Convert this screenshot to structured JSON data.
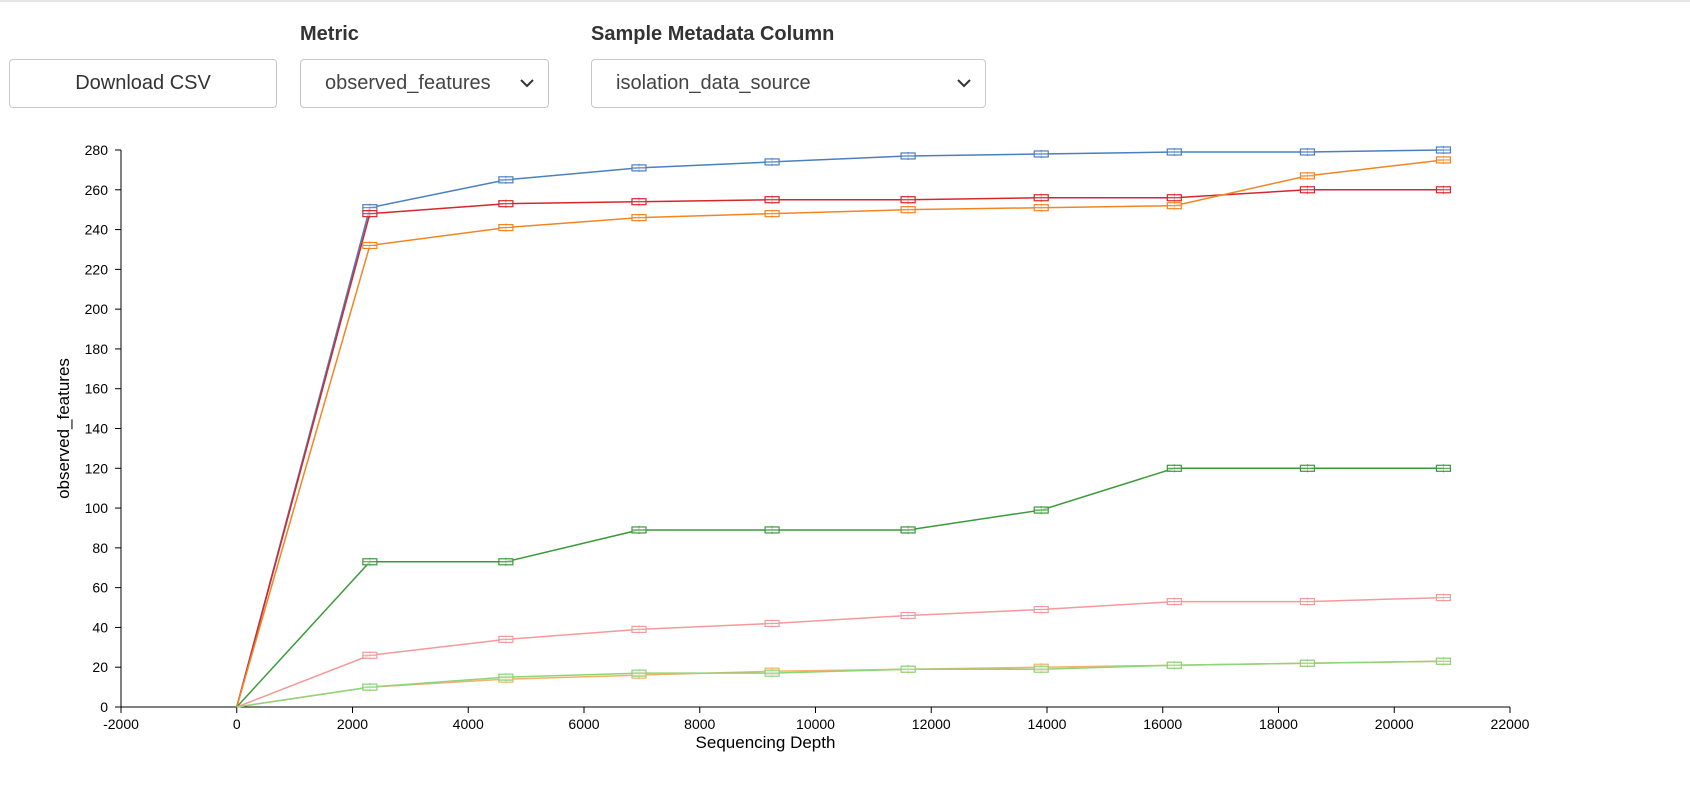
{
  "controls": {
    "download_label": "Download CSV",
    "metric_label": "Metric",
    "metric_value": "observed_features",
    "metadata_label": "Sample Metadata Column",
    "metadata_value": "isolation_data_source"
  },
  "chart_data": {
    "type": "line",
    "xlabel": "Sequencing Depth",
    "ylabel": "observed_features",
    "xlim": [
      -2000,
      22000
    ],
    "ylim": [
      0,
      280
    ],
    "x_ticks": [
      -2000,
      0,
      2000,
      4000,
      6000,
      8000,
      10000,
      12000,
      14000,
      16000,
      18000,
      20000,
      22000
    ],
    "y_ticks": [
      0,
      20,
      40,
      60,
      80,
      100,
      120,
      140,
      160,
      180,
      200,
      220,
      240,
      260,
      280
    ],
    "x": [
      0,
      2300,
      4650,
      6950,
      9250,
      11600,
      13900,
      16200,
      18500,
      20850
    ],
    "series": [
      {
        "color": "#4a7fc0",
        "values": [
          0,
          251,
          265,
          271,
          274,
          277,
          278,
          279,
          279,
          280
        ]
      },
      {
        "color": "#d6262b",
        "values": [
          0,
          248,
          253,
          254,
          255,
          255,
          256,
          256,
          260,
          260
        ]
      },
      {
        "color": "#f28522",
        "values": [
          0,
          232,
          241,
          246,
          248,
          250,
          251,
          252,
          267,
          275
        ]
      },
      {
        "color": "#3a9a3a",
        "values": [
          0,
          73,
          73,
          89,
          89,
          89,
          99,
          120,
          120,
          120
        ]
      },
      {
        "color": "#f39a9a",
        "values": [
          0,
          26,
          34,
          39,
          42,
          46,
          49,
          53,
          53,
          55
        ]
      },
      {
        "color": "#f5b06b",
        "values": [
          0,
          10,
          14,
          16,
          18,
          19,
          20,
          21,
          22,
          23
        ]
      },
      {
        "color": "#8cd57a",
        "values": [
          0,
          10,
          15,
          17,
          17,
          19,
          19,
          21,
          22,
          23
        ]
      }
    ]
  }
}
